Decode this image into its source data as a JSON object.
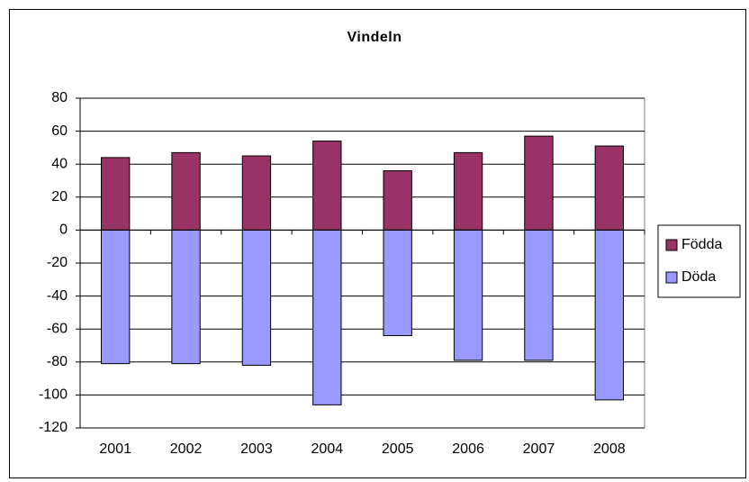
{
  "chart_data": {
    "type": "bar",
    "title": "Vindeln",
    "categories": [
      "2001",
      "2002",
      "2003",
      "2004",
      "2005",
      "2006",
      "2007",
      "2008"
    ],
    "series": [
      {
        "name": "Födda",
        "color": "#993366",
        "values": [
          44,
          47,
          45,
          54,
          36,
          47,
          57,
          51
        ]
      },
      {
        "name": "Döda",
        "color": "#9999ff",
        "values": [
          -81,
          -81,
          -82,
          -106,
          -64,
          -79,
          -79,
          -103
        ]
      }
    ],
    "ylim": [
      -120,
      80
    ],
    "yticks": [
      -120,
      -100,
      -80,
      -60,
      -40,
      -20,
      0,
      20,
      40,
      60,
      80
    ],
    "grid": true,
    "legend": "right"
  }
}
